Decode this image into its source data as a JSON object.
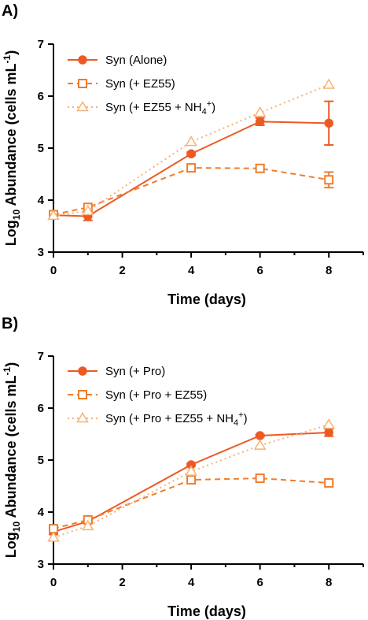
{
  "colors": {
    "solid": "#ec5a24",
    "dashed": "#f07d2c",
    "dotted": "#f7b274"
  },
  "chart_data": [
    {
      "type": "line",
      "panel_label": "A)",
      "xlabel": "Time (days)",
      "ylabel_main": "Log",
      "ylabel_sub": "10",
      "ylabel_rest": " Abundance (cells mL",
      "ylabel_sup": "-1",
      "ylabel_end": ")",
      "xlim": [
        0,
        9
      ],
      "ylim": [
        3,
        7
      ],
      "xticks": [
        "0",
        "2",
        "4",
        "6",
        "8"
      ],
      "yticks": [
        "3",
        "4",
        "5",
        "6",
        "7"
      ],
      "x": [
        0,
        1,
        4,
        6,
        8
      ],
      "grid": false,
      "legend_position": "top-left",
      "series": [
        {
          "name": "Syn (Alone)",
          "style": "solid-circle",
          "values": [
            3.71,
            3.69,
            4.89,
            5.51,
            5.48
          ],
          "errors": [
            0.02,
            0.08,
            0.03,
            0.07,
            0.42
          ]
        },
        {
          "name": "Syn (+ EZ55)",
          "style": "dashed-square",
          "values": [
            3.72,
            3.86,
            4.62,
            4.61,
            4.39
          ],
          "errors": [
            0.02,
            0.02,
            0.04,
            0.07,
            0.15
          ]
        },
        {
          "name_main": "Syn (+ EZ55 + NH",
          "name_sub": "4",
          "name_sup": "+",
          "name_end": ")",
          "style": "dotted-triangle",
          "values": [
            3.7,
            3.79,
            5.12,
            5.68,
            6.22
          ],
          "errors": [
            0,
            0,
            0,
            0,
            0
          ]
        }
      ]
    },
    {
      "type": "line",
      "panel_label": "B)",
      "xlabel": "Time (days)",
      "ylabel_main": "Log",
      "ylabel_sub": "10",
      "ylabel_rest": " Abundance (cells mL",
      "ylabel_sup": "-1",
      "ylabel_end": ")",
      "xlim": [
        0,
        9
      ],
      "ylim": [
        3,
        7
      ],
      "xticks": [
        "0",
        "2",
        "4",
        "6",
        "8"
      ],
      "yticks": [
        "3",
        "4",
        "5",
        "6",
        "7"
      ],
      "x": [
        0,
        1,
        4,
        6,
        8
      ],
      "grid": false,
      "legend_position": "top-left",
      "series": [
        {
          "name": "Syn (+ Pro)",
          "style": "solid-circle",
          "values": [
            3.62,
            3.82,
            4.91,
            5.47,
            5.53
          ],
          "errors": [
            0.05,
            0.02,
            0.02,
            0.02,
            0.07
          ]
        },
        {
          "name": "Syn (+ Pro + EZ55)",
          "style": "dashed-square",
          "values": [
            3.68,
            3.85,
            4.62,
            4.65,
            4.56
          ],
          "errors": [
            0.02,
            0.02,
            0.02,
            0.02,
            0.02
          ]
        },
        {
          "name_main": "Syn (+ Pro + EZ55 + NH",
          "name_sub": "4",
          "name_sup": "+",
          "name_end": ")",
          "style": "dotted-triangle",
          "values": [
            3.51,
            3.73,
            4.78,
            5.28,
            5.68
          ],
          "errors": [
            0,
            0,
            0,
            0,
            0
          ]
        }
      ]
    }
  ]
}
